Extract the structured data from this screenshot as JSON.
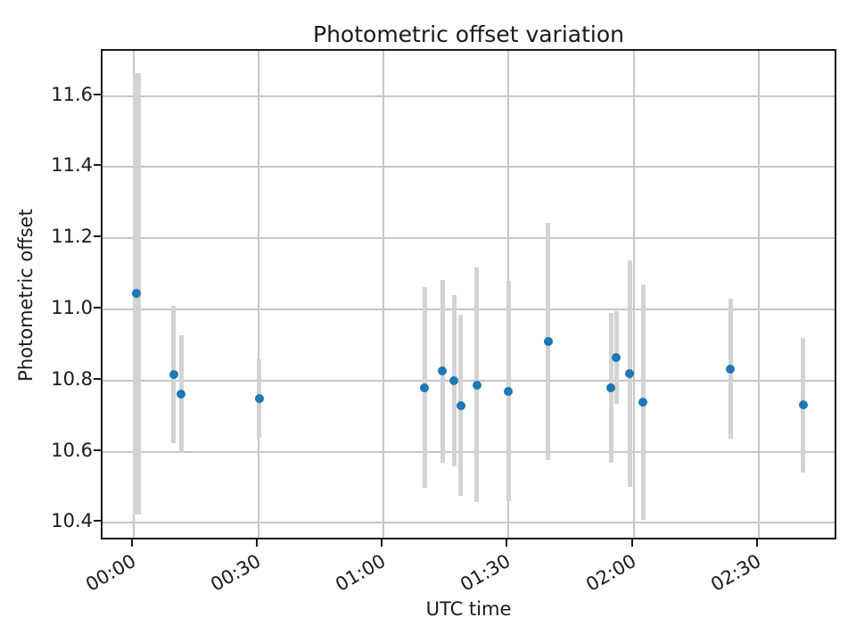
{
  "figure": {
    "title": "Photometric offset variation",
    "x_axis_label": "UTC time",
    "y_axis_label": "Photometric offset"
  },
  "chart_data": {
    "type": "scatter",
    "subtype": "errorbar",
    "title": "Photometric offset variation",
    "xlabel": "UTC time",
    "ylabel": "Photometric offset",
    "grid": true,
    "legend": false,
    "marker_color": "#1f77b4",
    "errorbar_color": "#d3d3d3",
    "xlim_minutes": [
      -7.4,
      169.1
    ],
    "ylim": [
      10.348,
      11.727
    ],
    "x_ticks": [
      {
        "minutes": 0,
        "label": "00:00"
      },
      {
        "minutes": 30,
        "label": "00:30"
      },
      {
        "minutes": 60,
        "label": "01:00"
      },
      {
        "minutes": 90,
        "label": "01:30"
      },
      {
        "minutes": 120,
        "label": "02:00"
      },
      {
        "minutes": 150,
        "label": "02:30"
      }
    ],
    "y_ticks": [
      {
        "value": 10.4,
        "label": "10.4"
      },
      {
        "value": 10.6,
        "label": "10.6"
      },
      {
        "value": 10.8,
        "label": "10.8"
      },
      {
        "value": 11.0,
        "label": "11.0"
      },
      {
        "value": 11.2,
        "label": "11.2"
      },
      {
        "value": 11.4,
        "label": "11.4"
      },
      {
        "value": 11.6,
        "label": "11.6"
      }
    ],
    "points": [
      {
        "utc": "00:01",
        "minutes": 0.8,
        "offset": 11.044,
        "err": 0.62,
        "wide": true
      },
      {
        "utc": "00:10",
        "minutes": 9.6,
        "offset": 10.818,
        "err": 0.193
      },
      {
        "utc": "00:11",
        "minutes": 11.5,
        "offset": 10.762,
        "err": 0.165
      },
      {
        "utc": "00:30",
        "minutes": 30.2,
        "offset": 10.749,
        "err": 0.11
      },
      {
        "utc": "01:10",
        "minutes": 69.9,
        "offset": 10.78,
        "err": 0.282
      },
      {
        "utc": "01:14",
        "minutes": 74.2,
        "offset": 10.826,
        "err": 0.257
      },
      {
        "utc": "01:17",
        "minutes": 76.9,
        "offset": 10.8,
        "err": 0.241
      },
      {
        "utc": "01:18",
        "minutes": 78.5,
        "offset": 10.73,
        "err": 0.255
      },
      {
        "utc": "01:22",
        "minutes": 82.4,
        "offset": 10.787,
        "err": 0.33
      },
      {
        "utc": "01:30",
        "minutes": 90.0,
        "offset": 10.77,
        "err": 0.309
      },
      {
        "utc": "01:40",
        "minutes": 99.5,
        "offset": 10.91,
        "err": 0.333
      },
      {
        "utc": "01:55",
        "minutes": 114.6,
        "offset": 10.779,
        "err": 0.21
      },
      {
        "utc": "01:56",
        "minutes": 115.9,
        "offset": 10.864,
        "err": 0.13
      },
      {
        "utc": "01:59",
        "minutes": 119.1,
        "offset": 10.82,
        "err": 0.318
      },
      {
        "utc": "02:02",
        "minutes": 122.3,
        "offset": 10.739,
        "err": 0.33
      },
      {
        "utc": "02:23",
        "minutes": 143.3,
        "offset": 10.833,
        "err": 0.196
      },
      {
        "utc": "02:41",
        "minutes": 160.7,
        "offset": 10.731,
        "err": 0.19
      }
    ]
  }
}
